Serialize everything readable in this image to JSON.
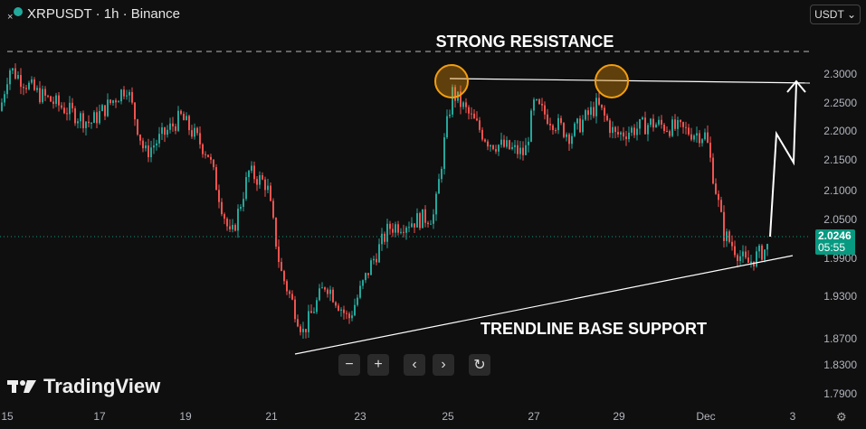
{
  "header": {
    "symbol_title": "XRPUSDT · 1h · Binance",
    "currency": "USDT",
    "currency_icon": "chevron-down-icon"
  },
  "price_axis": {
    "labels": [
      "2.3000",
      "2.2500",
      "2.2000",
      "2.1500",
      "2.1000",
      "2.0500",
      "1.9900",
      "1.9300",
      "1.8700",
      "1.8300",
      "1.7900"
    ],
    "current_price": "2.0246",
    "countdown": "05:55",
    "current_color": "#089981"
  },
  "time_axis": {
    "labels": [
      "15",
      "17",
      "19",
      "21",
      "23",
      "25",
      "27",
      "29",
      "Dec",
      "3"
    ]
  },
  "annotations": {
    "resistance": "STRONG RESISTANCE",
    "support": "TRENDLINE BASE SUPPORT",
    "circle_color": "#f59e0b"
  },
  "controls": {
    "zoom_out": "−",
    "zoom_in": "+",
    "scroll_left": "‹",
    "scroll_right": "›",
    "reset": "↻"
  },
  "brand": "TradingView",
  "colors": {
    "up": "#26a69a",
    "down": "#ef5350"
  },
  "chart_data": {
    "type": "candlestick",
    "approx_price_path": [
      [
        "15",
        2.24
      ],
      [
        "15",
        2.31
      ],
      [
        "16",
        2.27
      ],
      [
        "17",
        2.22
      ],
      [
        "17",
        2.28
      ],
      [
        "18",
        2.17
      ],
      [
        "19",
        2.23
      ],
      [
        "20",
        2.17
      ],
      [
        "20",
        2.03
      ],
      [
        "21",
        2.14
      ],
      [
        "21",
        2.12
      ],
      [
        "21",
        1.98
      ],
      [
        "22",
        1.88
      ],
      [
        "22",
        1.96
      ],
      [
        "23",
        1.9
      ],
      [
        "23",
        1.99
      ],
      [
        "24",
        2.05
      ],
      [
        "25",
        2.07
      ],
      [
        "25",
        2.2
      ],
      [
        "25",
        2.27
      ],
      [
        "26",
        2.19
      ],
      [
        "27",
        2.17
      ],
      [
        "27",
        2.25
      ],
      [
        "28",
        2.2
      ],
      [
        "29",
        2.25
      ],
      [
        "29",
        2.2
      ],
      [
        "30",
        2.22
      ],
      [
        "Dec",
        2.2
      ],
      [
        "Dec",
        2.12
      ],
      [
        "Dec",
        2.04
      ],
      [
        "2",
        1.99
      ],
      [
        "2",
        2.02
      ]
    ]
  }
}
